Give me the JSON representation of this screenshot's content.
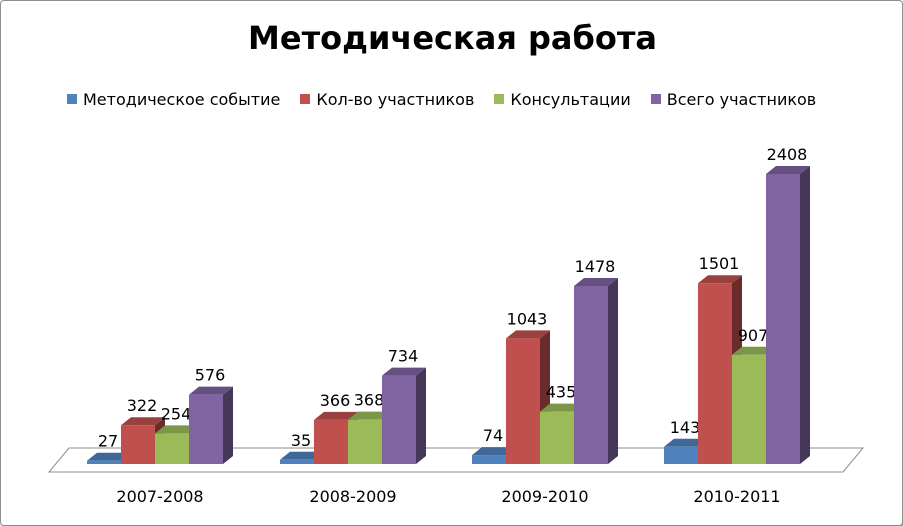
{
  "chart_data": {
    "type": "bar",
    "title": "Методическая работа",
    "categories": [
      "2007-2008",
      "2008-2009",
      "2009-2010",
      "2010-2011"
    ],
    "series": [
      {
        "name": "Методическое событие",
        "values": [
          27,
          35,
          74,
          143
        ],
        "color": "#4f81bd"
      },
      {
        "name": "Кол-во участников",
        "values": [
          322,
          366,
          1043,
          1501
        ],
        "color": "#c0504d"
      },
      {
        "name": "Консультации",
        "values": [
          254,
          368,
          435,
          907
        ],
        "color": "#9bbb59"
      },
      {
        "name": "Всего участников",
        "values": [
          576,
          734,
          1478,
          2408
        ],
        "color": "#8064a2"
      }
    ],
    "legend_position": "top",
    "grid": false,
    "ylim": [
      0,
      2600
    ]
  }
}
